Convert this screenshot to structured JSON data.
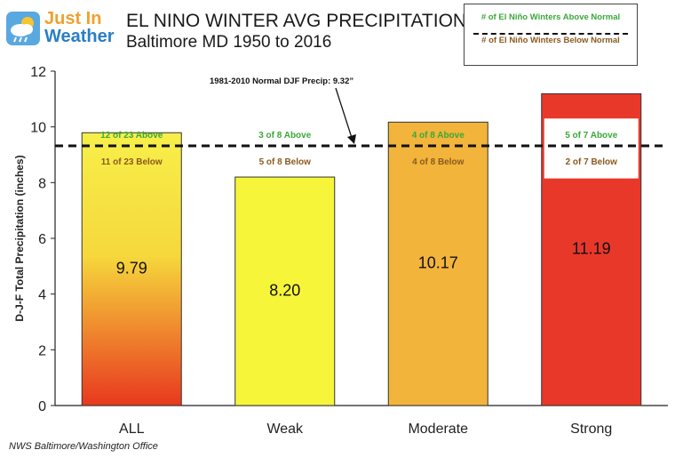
{
  "logo": {
    "line1": "Just In",
    "line2": "Weather",
    "icon": "sun-cloud-rain-icon"
  },
  "title": "EL NINO WINTER AVG PRECIPITATION",
  "subtitle": "Baltimore MD 1950 to 2016",
  "legend": {
    "above": "# of El Niño Winters Above Normal",
    "below": "# of El Niño Winters Below Normal"
  },
  "credit": "NWS Baltimore/Washington Office",
  "chart_data": {
    "type": "bar",
    "categories": [
      "ALL",
      "Weak",
      "Moderate",
      "Strong"
    ],
    "values": [
      9.79,
      8.2,
      10.17,
      11.19
    ],
    "value_labels": [
      "9.79",
      "8.20",
      "10.17",
      "11.19"
    ],
    "above_labels": [
      "12 of 23 Above",
      "3 of 8 Above",
      "4 of 8 Above",
      "5 of 7 Above"
    ],
    "below_labels": [
      "11 of 23 Below",
      "5 of 8 Below",
      "4 of 8 Below",
      "2 of 7 Below"
    ],
    "ylabel": "D-J-F Total Precipitation (inches)",
    "ylim": [
      0,
      12
    ],
    "yticks": [
      0,
      2,
      4,
      6,
      8,
      10,
      12
    ],
    "reference": {
      "value": 9.32,
      "label": "1981-2010  Normal DJF Precip: 9.32”"
    },
    "colors": {
      "all_top": "#f7ef4a",
      "all_bottom": "#e8381f",
      "weak": "#f7f53a",
      "moderate": "#f2b43a",
      "strong": "#e8382a",
      "above_text": "#3aa83a",
      "below_text": "#8a5a1e"
    }
  }
}
